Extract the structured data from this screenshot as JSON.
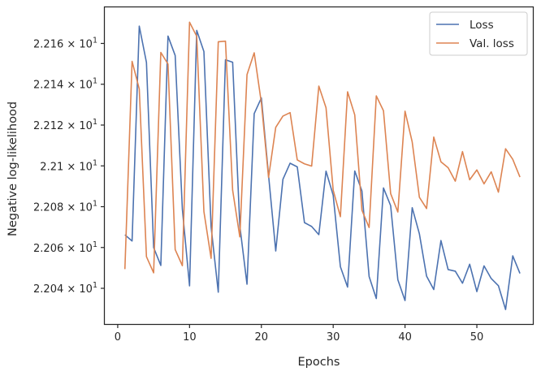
{
  "chart_data": {
    "type": "line",
    "xlabel": "Epochs",
    "ylabel": "Negative log-likelihood",
    "xlim": [
      -1.8,
      57.8
    ],
    "ylim": [
      22.0225,
      22.1777
    ],
    "x_ticks": [
      0,
      10,
      20,
      30,
      40,
      50
    ],
    "y_ticks": [
      {
        "value": 22.04,
        "mantissa": "2.204",
        "base": "10",
        "exp": "1"
      },
      {
        "value": 22.06,
        "mantissa": "2.206",
        "base": "10",
        "exp": "1"
      },
      {
        "value": 22.08,
        "mantissa": "2.208",
        "base": "10",
        "exp": "1"
      },
      {
        "value": 22.1,
        "mantissa": "2.21",
        "base": "10",
        "exp": "1"
      },
      {
        "value": 22.12,
        "mantissa": "2.212",
        "base": "10",
        "exp": "1"
      },
      {
        "value": 22.14,
        "mantissa": "2.214",
        "base": "10",
        "exp": "1"
      },
      {
        "value": 22.16,
        "mantissa": "2.216",
        "base": "10",
        "exp": "1"
      }
    ],
    "grid": false,
    "legend_position": "top-right",
    "x": [
      1,
      2,
      3,
      4,
      5,
      6,
      7,
      8,
      9,
      10,
      11,
      12,
      13,
      14,
      15,
      16,
      17,
      18,
      19,
      20,
      21,
      22,
      23,
      24,
      25,
      26,
      27,
      28,
      29,
      30,
      31,
      32,
      33,
      34,
      35,
      36,
      37,
      38,
      39,
      40,
      41,
      42,
      43,
      44,
      45,
      46,
      47,
      48,
      49,
      50,
      51,
      52,
      53,
      54,
      55,
      56
    ],
    "series": [
      {
        "name": "Loss",
        "color": "#4c72b0",
        "values": [
          22.0662,
          22.0632,
          22.1685,
          22.1507,
          22.06,
          22.0512,
          22.1636,
          22.1541,
          22.0788,
          22.0412,
          22.1664,
          22.156,
          22.0701,
          22.0381,
          22.152,
          22.1508,
          22.0706,
          22.042,
          22.1256,
          22.1333,
          22.0954,
          22.0583,
          22.0934,
          22.1013,
          22.0995,
          22.0722,
          22.0703,
          22.0663,
          22.0974,
          22.0856,
          22.0506,
          22.0406,
          22.0975,
          22.0877,
          22.0458,
          22.035,
          22.0892,
          22.0805,
          22.0442,
          22.034,
          22.0795,
          22.0667,
          22.046,
          22.0394,
          22.0634,
          22.0492,
          22.0484,
          22.0425,
          22.0518,
          22.0384,
          22.051,
          22.0448,
          22.0413,
          22.0296,
          22.0559,
          22.0473
        ]
      },
      {
        "name": "Val. loss",
        "color": "#dd8452",
        "values": [
          22.0494,
          22.1512,
          22.1377,
          22.0555,
          22.0476,
          22.1556,
          22.1499,
          22.059,
          22.0511,
          22.1704,
          22.1635,
          22.0776,
          22.0547,
          22.1608,
          22.1611,
          22.0881,
          22.0652,
          22.1447,
          22.1554,
          22.1309,
          22.0943,
          22.1189,
          22.1244,
          22.1261,
          22.1029,
          22.101,
          22.0999,
          22.1391,
          22.1285,
          22.0881,
          22.0751,
          22.1363,
          22.125,
          22.0783,
          22.0698,
          22.1343,
          22.127,
          22.0864,
          22.0774,
          22.1268,
          22.1117,
          22.0846,
          22.0791,
          22.1141,
          22.102,
          22.0991,
          22.0925,
          22.107,
          22.0932,
          22.098,
          22.0912,
          22.0971,
          22.0871,
          22.1084,
          22.1032,
          22.0945
        ]
      }
    ]
  }
}
